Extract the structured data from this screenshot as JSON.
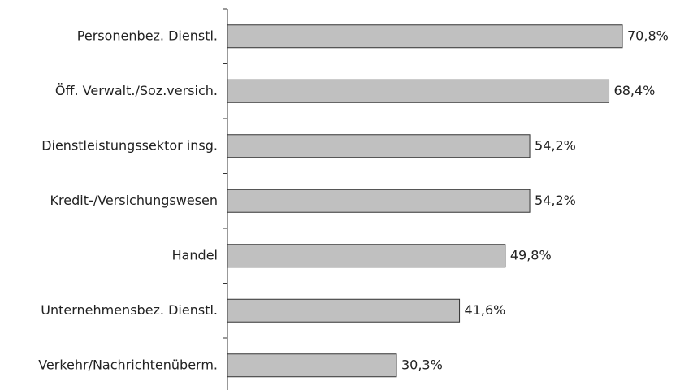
{
  "chart_data": {
    "type": "bar",
    "orientation": "horizontal",
    "categories": [
      "Personenbez. Dienstl.",
      "Öff. Verwalt./Soz.versich.",
      "Dienstleistungssektor insg.",
      "Kredit-/Versichungswesen",
      "Handel",
      "Unternehmensbez. Dienstl.",
      "Verkehr/Nachrichtenüberm."
    ],
    "values": [
      70.8,
      68.4,
      54.2,
      54.2,
      49.8,
      41.6,
      30.3
    ],
    "value_labels": [
      "70,8%",
      "68,4%",
      "54,2%",
      "54,2%",
      "49,8%",
      "41,6%",
      "30,3%"
    ],
    "color": "#c0c0c0"
  }
}
